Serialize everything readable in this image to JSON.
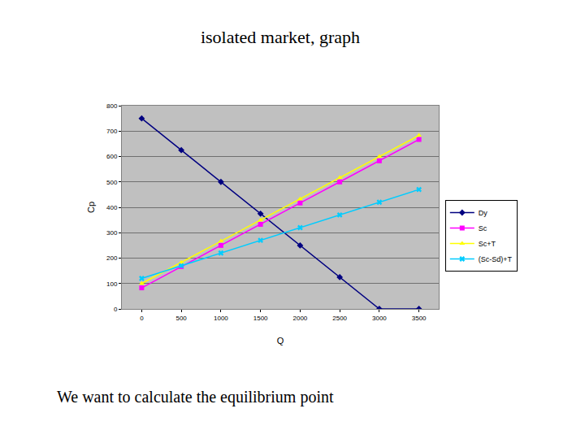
{
  "chart_data": {
    "type": "line",
    "title": "isolated market, graph",
    "x_label": "Q",
    "y_label": "Cp",
    "annotations": [
      "We want to calculate the equilibrium point"
    ],
    "x": [
      0,
      500,
      1000,
      1500,
      2000,
      2500,
      3000,
      3500
    ],
    "series": [
      {
        "name": "Dy",
        "color": "#000080",
        "marker": "diamond",
        "values": [
          750,
          625,
          500,
          375,
          250,
          125,
          0,
          0
        ]
      },
      {
        "name": "Sc",
        "color": "#ff00ff",
        "marker": "square",
        "values": [
          83,
          167,
          250,
          333,
          417,
          500,
          583,
          667
        ]
      },
      {
        "name": "Sc+T",
        "color": "#ffff00",
        "marker": "triangle-up",
        "values": [
          100,
          183,
          267,
          350,
          433,
          517,
          600,
          683
        ]
      },
      {
        "name": "(Sc-Sd)+T",
        "color": "#00ccff",
        "marker": "x",
        "values": [
          120,
          170,
          220,
          270,
          320,
          370,
          420,
          470
        ]
      }
    ],
    "xlim": [
      -250,
      3750
    ],
    "xticks": [
      0,
      500,
      1000,
      1500,
      2000,
      2500,
      3000,
      3500
    ],
    "ylim": [
      0,
      800
    ],
    "yticks": [
      0,
      100,
      200,
      300,
      400,
      500,
      600,
      700,
      800
    ],
    "grid": true,
    "legend": "right"
  }
}
